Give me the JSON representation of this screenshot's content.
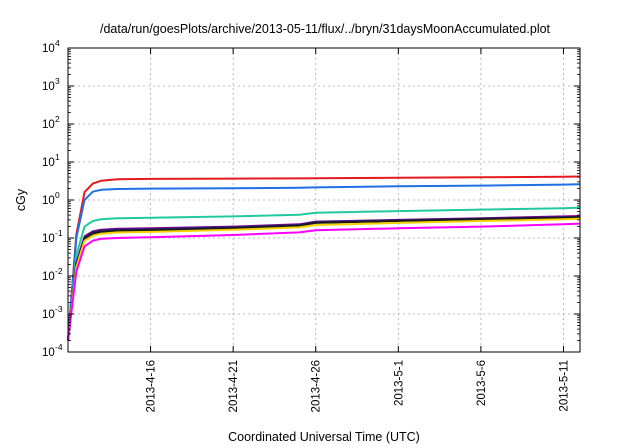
{
  "chart_data": {
    "type": "line",
    "title": "/data/run/goesPlots/archive/2013-05-11/flux/../bryn/31daysMoonAccumulated.plot",
    "xlabel": "Coordinated Universal Time (UTC)",
    "ylabel": "cGy",
    "yscale": "log",
    "ylim": [
      0.0001,
      10000
    ],
    "xlim": [
      "2013-04-11",
      "2013-05-12"
    ],
    "grid": true,
    "x_ticks": [
      "2013-4-16",
      "2013-4-21",
      "2013-4-26",
      "2013-5-1",
      "2013-5-6",
      "2013-5-11"
    ],
    "y_ticks": [
      {
        "value": 0.0001,
        "base": "10",
        "exp": "-4"
      },
      {
        "value": 0.001,
        "base": "10",
        "exp": "-3"
      },
      {
        "value": 0.01,
        "base": "10",
        "exp": "-2"
      },
      {
        "value": 0.1,
        "base": "10",
        "exp": "-1"
      },
      {
        "value": 1,
        "base": "10",
        "exp": "0"
      },
      {
        "value": 10,
        "base": "10",
        "exp": "1"
      },
      {
        "value": 100,
        "base": "10",
        "exp": "2"
      },
      {
        "value": 1000,
        "base": "10",
        "exp": "3"
      },
      {
        "value": 10000,
        "base": "10",
        "exp": "4"
      }
    ],
    "x": [
      "2013-04-11",
      "2013-04-11T12:00",
      "2013-04-12",
      "2013-04-12T12:00",
      "2013-04-13",
      "2013-04-14",
      "2013-04-16",
      "2013-04-21",
      "2013-04-25",
      "2013-04-26",
      "2013-05-01",
      "2013-05-06",
      "2013-05-11",
      "2013-05-12"
    ],
    "series": [
      {
        "color": "#e41a1c",
        "values": [
          0.0002,
          0.12,
          1.6,
          2.7,
          3.2,
          3.5,
          3.6,
          3.65,
          3.7,
          3.75,
          3.85,
          3.95,
          4.1,
          4.15
        ]
      },
      {
        "color": "#1f6fe5",
        "values": [
          0.0002,
          0.1,
          1.0,
          1.65,
          1.85,
          1.95,
          2.0,
          2.05,
          2.1,
          2.15,
          2.3,
          2.4,
          2.55,
          2.6
        ]
      },
      {
        "color": "#20c9a0",
        "values": [
          0.0002,
          0.035,
          0.2,
          0.28,
          0.31,
          0.33,
          0.34,
          0.37,
          0.41,
          0.46,
          0.51,
          0.56,
          0.61,
          0.63
        ]
      },
      {
        "color": "#8b008b",
        "values": [
          0.0002,
          0.022,
          0.11,
          0.15,
          0.165,
          0.175,
          0.18,
          0.2,
          0.23,
          0.27,
          0.3,
          0.33,
          0.37,
          0.38
        ]
      },
      {
        "color": "#1c2478",
        "values": [
          0.0002,
          0.02,
          0.1,
          0.14,
          0.155,
          0.165,
          0.17,
          0.19,
          0.22,
          0.26,
          0.29,
          0.32,
          0.35,
          0.36
        ]
      },
      {
        "color": "#1a1a1a",
        "values": [
          0.0002,
          0.019,
          0.095,
          0.13,
          0.145,
          0.155,
          0.16,
          0.18,
          0.21,
          0.25,
          0.28,
          0.31,
          0.34,
          0.35
        ]
      },
      {
        "color": "#f5d000",
        "values": [
          0.0002,
          0.017,
          0.085,
          0.115,
          0.13,
          0.14,
          0.145,
          0.165,
          0.19,
          0.22,
          0.25,
          0.28,
          0.31,
          0.32
        ]
      },
      {
        "color": "#ff00ff",
        "values": [
          0.0002,
          0.013,
          0.06,
          0.085,
          0.095,
          0.1,
          0.105,
          0.12,
          0.14,
          0.16,
          0.18,
          0.2,
          0.23,
          0.24
        ]
      }
    ]
  }
}
